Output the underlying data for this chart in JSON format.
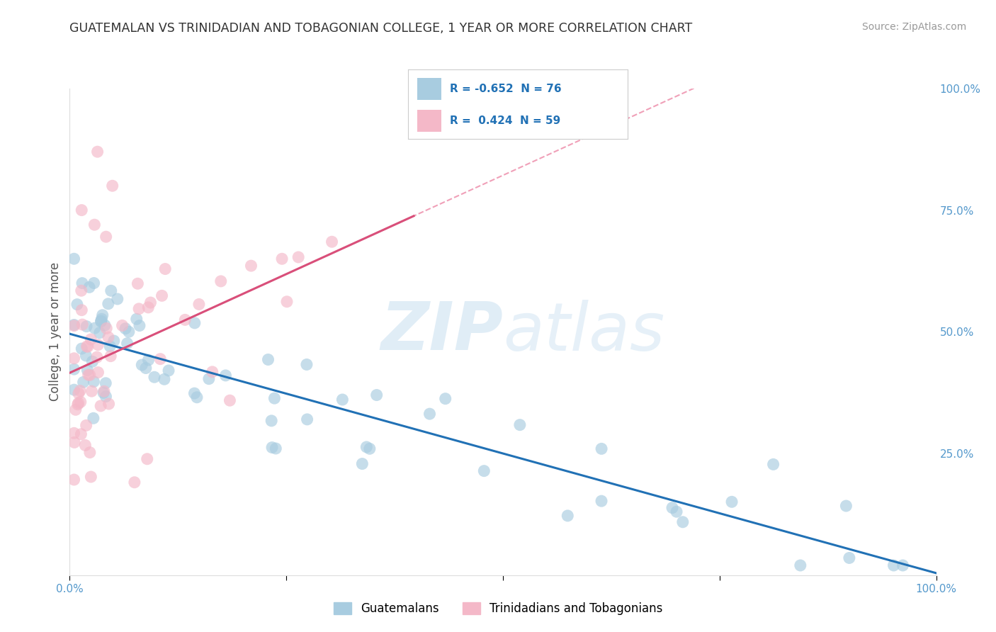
{
  "title": "GUATEMALAN VS TRINIDADIAN AND TOBAGONIAN COLLEGE, 1 YEAR OR MORE CORRELATION CHART",
  "source": "Source: ZipAtlas.com",
  "ylabel": "College, 1 year or more",
  "xlim": [
    0.0,
    1.0
  ],
  "ylim": [
    0.0,
    1.0
  ],
  "legend_entries": [
    "Guatemalans",
    "Trinidadians and Tobagonians"
  ],
  "blue_color": "#a8cce0",
  "pink_color": "#f4b8c8",
  "blue_line_color": "#2171b5",
  "pink_line_color": "#d94f7a",
  "dashed_line_color": "#f0a0b8",
  "R_blue": -0.652,
  "N_blue": 76,
  "R_pink": 0.424,
  "N_pink": 59,
  "legend_R_color": "#2171b5",
  "grid_color": "#dddddd",
  "tick_color": "#5599cc",
  "title_color": "#333333",
  "source_color": "#999999"
}
